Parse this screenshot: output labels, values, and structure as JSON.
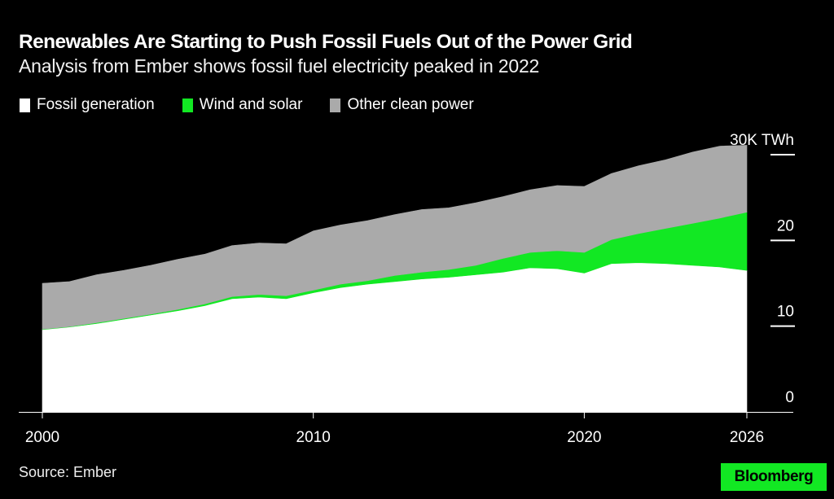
{
  "header": {
    "title": "Renewables Are Starting to Push Fossil Fuels Out of the Power Grid",
    "subtitle": "Analysis from Ember shows fossil fuel electricity peaked in 2022"
  },
  "footer": {
    "source": "Source: Ember",
    "logo": "Bloomberg",
    "logo_color": "#12E823"
  },
  "chart_data": {
    "type": "area",
    "stacked": true,
    "title": "Renewables Are Starting to Push Fossil Fuels Out of the Power Grid",
    "subtitle": "Analysis from Ember shows fossil fuel electricity peaked in 2022",
    "xlabel": "",
    "ylabel": "",
    "y_unit": "K TWh",
    "ylim": [
      0,
      30
    ],
    "xlim": [
      2000,
      2026
    ],
    "x_ticks": [
      "2000",
      "2010",
      "2020",
      "2026"
    ],
    "y_ticks": [
      {
        "value": 0,
        "label": "0"
      },
      {
        "value": 10,
        "label": "10"
      },
      {
        "value": 20,
        "label": "20"
      },
      {
        "value": 30,
        "label": "30K TWh"
      }
    ],
    "legend_position": "top-left",
    "grid": false,
    "x": [
      2000,
      2001,
      2002,
      2003,
      2004,
      2005,
      2006,
      2007,
      2008,
      2009,
      2010,
      2011,
      2012,
      2013,
      2014,
      2015,
      2016,
      2017,
      2018,
      2019,
      2020,
      2021,
      2022,
      2023,
      2024,
      2025,
      2026
    ],
    "series": [
      {
        "name": "Fossil generation",
        "color": "#FFFFFF",
        "values": [
          9.6,
          9.9,
          10.3,
          10.8,
          11.3,
          11.8,
          12.4,
          13.2,
          13.4,
          13.2,
          13.9,
          14.5,
          14.9,
          15.2,
          15.5,
          15.7,
          16.0,
          16.3,
          16.8,
          16.7,
          16.2,
          17.3,
          17.4,
          17.3,
          17.1,
          16.9,
          16.5
        ]
      },
      {
        "name": "Wind and solar",
        "color": "#12E823",
        "values": [
          0.05,
          0.05,
          0.1,
          0.1,
          0.1,
          0.15,
          0.2,
          0.25,
          0.3,
          0.35,
          0.3,
          0.4,
          0.4,
          0.7,
          0.8,
          0.9,
          1.1,
          1.6,
          1.8,
          2.1,
          2.4,
          2.8,
          3.4,
          4.1,
          4.9,
          5.7,
          6.8
        ]
      },
      {
        "name": "Other clean power",
        "color": "#AAAAAA",
        "values": [
          5.35,
          5.25,
          5.6,
          5.6,
          5.7,
          5.85,
          5.8,
          5.95,
          6.0,
          6.05,
          6.9,
          6.9,
          7.0,
          7.1,
          7.3,
          7.2,
          7.3,
          7.2,
          7.3,
          7.6,
          7.7,
          7.7,
          7.9,
          8.0,
          8.3,
          8.4,
          7.8
        ]
      }
    ]
  }
}
